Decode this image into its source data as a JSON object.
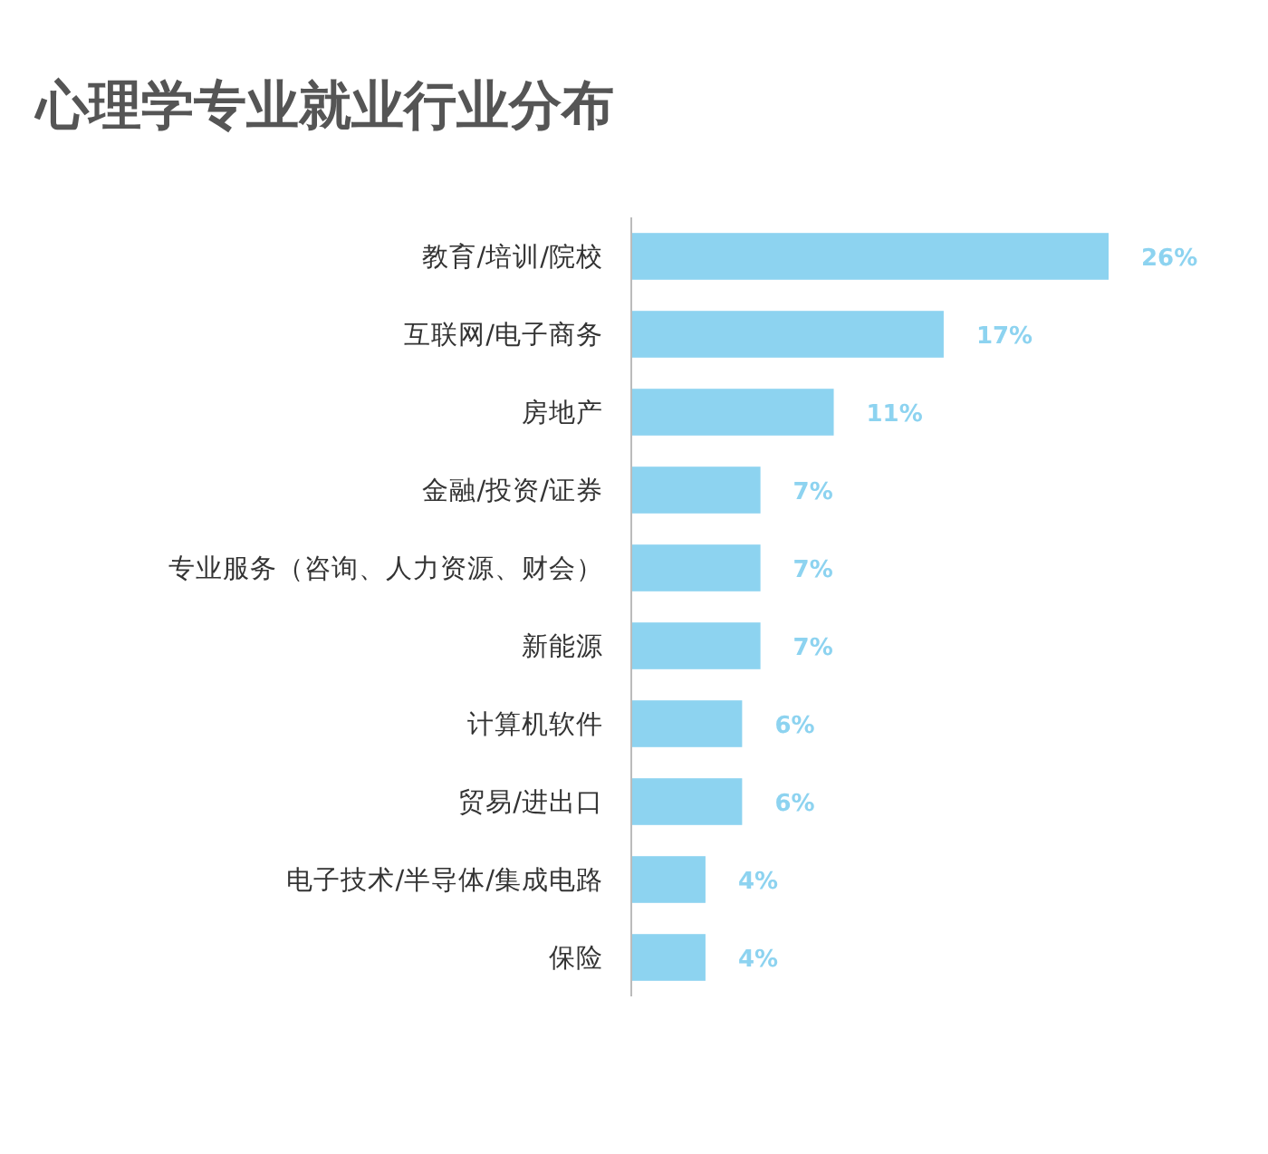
{
  "chart_data": {
    "type": "bar",
    "orientation": "horizontal",
    "title": "心理学专业就业行业分布",
    "categories": [
      "教育/培训/院校",
      "互联网/电子商务",
      "房地产",
      "金融/投资/证券",
      "专业服务（咨询、人力资源、财会）",
      "新能源",
      "计算机软件",
      "贸易/进出口",
      "电子技术/半导体/集成电路",
      "保险"
    ],
    "values": [
      26,
      17,
      11,
      7,
      7,
      7,
      6,
      6,
      4,
      4
    ],
    "value_labels": [
      "26%",
      "17%",
      "11%",
      "7%",
      "7%",
      "7%",
      "6%",
      "6%",
      "4%",
      "4%"
    ],
    "color": "#8dd3f0"
  }
}
